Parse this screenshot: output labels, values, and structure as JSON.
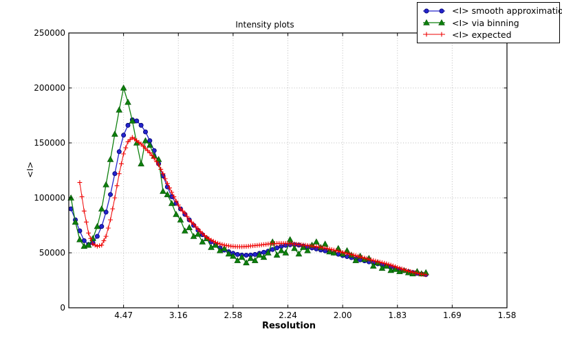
{
  "figure": {
    "background": "#ffffff",
    "frame_color": "#000000",
    "grid_color": "#bababa"
  },
  "chart_data": {
    "type": "line",
    "title": "Intensity plots",
    "xlabel": "Resolution",
    "ylabel": "<I>",
    "x_axis_note": "x axis linear in 1/resolution^2; tick labels in Angstrom, decreasing to the right",
    "xlim_s2": [
      0,
      0.4
    ],
    "ylim": [
      0,
      250000
    ],
    "grid": true,
    "legend_position": "upper right",
    "x_ticks": [
      {
        "label": "4.47",
        "s2": 0.05
      },
      {
        "label": "3.16",
        "s2": 0.1
      },
      {
        "label": "2.58",
        "s2": 0.15
      },
      {
        "label": "2.24",
        "s2": 0.2
      },
      {
        "label": "2.00",
        "s2": 0.25
      },
      {
        "label": "1.83",
        "s2": 0.3
      },
      {
        "label": "1.69",
        "s2": 0.35
      },
      {
        "label": "1.58",
        "s2": 0.4
      }
    ],
    "y_ticks": [
      {
        "label": "0",
        "value": 0
      },
      {
        "label": "50000",
        "value": 50000
      },
      {
        "label": "100000",
        "value": 100000
      },
      {
        "label": "150000",
        "value": 150000
      },
      {
        "label": "200000",
        "value": 200000
      },
      {
        "label": "250000",
        "value": 250000
      }
    ],
    "series": [
      {
        "name": "<I> smooth approximation",
        "marker": "circle",
        "color": "#2323cc",
        "edge": "#00006e",
        "line_width": 1.3,
        "s2_start": 0.002,
        "s2_step": 0.004,
        "markers_per_step": 1,
        "values": [
          90000,
          80000,
          70000,
          61000,
          57500,
          59000,
          65000,
          74000,
          87000,
          103000,
          122000,
          142000,
          157000,
          166000,
          171000,
          170000,
          166000,
          160000,
          152000,
          143000,
          131000,
          120000,
          110000,
          101000,
          95000,
          90000,
          85000,
          80000,
          75000,
          70500,
          66500,
          63000,
          60000,
          57000,
          54500,
          52500,
          51000,
          49500,
          48500,
          48000,
          47800,
          48000,
          48500,
          49500,
          50500,
          51500,
          53000,
          54500,
          55800,
          56800,
          57300,
          57400,
          57000,
          56200,
          55300,
          54400,
          53500,
          52600,
          51800,
          50800,
          49800,
          48700,
          47600,
          46600,
          45600,
          44600,
          43600,
          42700,
          41800,
          40900,
          40000,
          39000,
          38000,
          37000,
          35900,
          34800,
          33800,
          32800,
          32000,
          31300,
          30700,
          30200
        ]
      },
      {
        "name": "<I> via binning",
        "marker": "triangle",
        "color": "#0d800d",
        "edge": "#034d03",
        "line_width": 1.3,
        "s2_start": 0.002,
        "s2_step": 0.004,
        "markers_per_step": 1,
        "values": [
          100000,
          78000,
          62000,
          56000,
          57000,
          63000,
          74000,
          90000,
          112000,
          135000,
          158000,
          180000,
          200000,
          187000,
          170000,
          150000,
          131000,
          152000,
          148000,
          138000,
          135000,
          106000,
          103000,
          95000,
          85000,
          80000,
          70000,
          73000,
          65000,
          67000,
          60000,
          63000,
          55000,
          57000,
          52000,
          54000,
          49000,
          47000,
          43000,
          46000,
          41000,
          45000,
          43000,
          48000,
          46000,
          50000,
          60000,
          48000,
          52000,
          50000,
          62000,
          54000,
          49000,
          55000,
          52000,
          57000,
          60000,
          55000,
          58000,
          51000,
          50000,
          54000,
          49000,
          52000,
          48000,
          43000,
          47000,
          44000,
          45000,
          38000,
          41000,
          36000,
          38000,
          34000,
          35000,
          33000,
          34000,
          32000,
          31000,
          33000,
          31000,
          32000
        ]
      },
      {
        "name": "<I> expected",
        "marker": "plus",
        "color": "#ee0000",
        "edge": "#ee0000",
        "line_width": 1.0,
        "s2_start": 0.01,
        "s2_step": 0.004,
        "markers_per_step": 2,
        "values": [
          114000,
          88000,
          68000,
          58000,
          56000,
          57000,
          65000,
          80000,
          100000,
          122000,
          140000,
          151000,
          155000,
          152000,
          149000,
          145000,
          141000,
          136000,
          130000,
          122000,
          113000,
          105000,
          97000,
          90000,
          86000,
          80000,
          76000,
          71500,
          67500,
          64000,
          61500,
          59500,
          58000,
          57000,
          56300,
          55800,
          55600,
          55600,
          55800,
          56200,
          56600,
          57000,
          57500,
          58000,
          58300,
          58500,
          58600,
          58600,
          58400,
          58000,
          57600,
          57100,
          56600,
          56100,
          55600,
          55000,
          54200,
          53400,
          52500,
          51500,
          50400,
          49400,
          48400,
          47400,
          46300,
          45200,
          44100,
          43000,
          42000,
          41000,
          40000,
          38800,
          37400,
          36000,
          34700,
          33500,
          32400,
          31400,
          30600,
          30000
        ]
      }
    ]
  }
}
